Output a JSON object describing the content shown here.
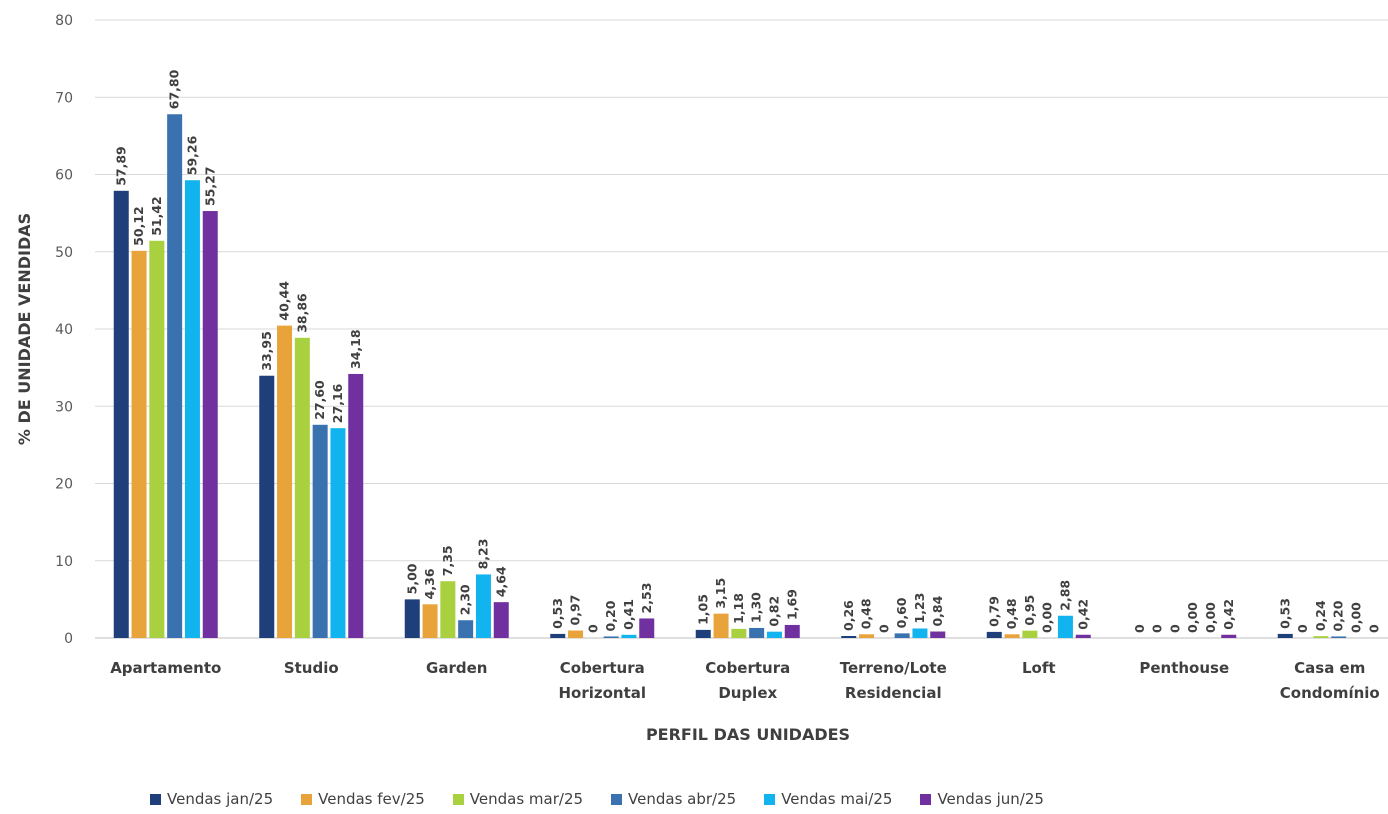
{
  "chart_data": {
    "type": "bar",
    "title": "",
    "xlabel": "PERFIL DAS UNIDADES",
    "ylabel": "% DE UNIDADE VENDIDAS",
    "ylim": [
      0,
      80
    ],
    "yticks": [
      0,
      10,
      20,
      30,
      40,
      50,
      60,
      70,
      80
    ],
    "grid": true,
    "legend_position": "bottom",
    "categories": [
      [
        "Apartamento"
      ],
      [
        "Studio"
      ],
      [
        "Garden"
      ],
      [
        "Cobertura",
        "Horizontal"
      ],
      [
        "Cobertura",
        "Duplex"
      ],
      [
        "Terreno/Lote",
        "Residencial"
      ],
      [
        "Loft"
      ],
      [
        "Penthouse"
      ],
      [
        "Casa em",
        "Condomínio"
      ]
    ],
    "series": [
      {
        "name": "Vendas jan/25",
        "color": "#1f3f7a",
        "values": [
          57.89,
          33.95,
          5.0,
          0.53,
          1.05,
          0.26,
          0.79,
          0,
          0.53
        ],
        "labels": [
          "57,89",
          "33,95",
          "5,00",
          "0,53",
          "1,05",
          "0,26",
          "0,79",
          "0",
          "0,53"
        ]
      },
      {
        "name": "Vendas fev/25",
        "color": "#e8a33b",
        "values": [
          50.12,
          40.44,
          4.36,
          0.97,
          3.15,
          0.48,
          0.48,
          0,
          0
        ],
        "labels": [
          "50,12",
          "40,44",
          "4,36",
          "0,97",
          "3,15",
          "0,48",
          "0,48",
          "0",
          "0"
        ]
      },
      {
        "name": "Vendas mar/25",
        "color": "#a9d13f",
        "values": [
          51.42,
          38.86,
          7.35,
          0,
          1.18,
          0,
          0.95,
          0,
          0.24
        ],
        "labels": [
          "51,42",
          "38,86",
          "7,35",
          "0",
          "1,18",
          "0",
          "0,95",
          "0",
          "0,24"
        ]
      },
      {
        "name": "Vendas abr/25",
        "color": "#3a72b0",
        "values": [
          67.8,
          27.6,
          2.3,
          0.2,
          1.3,
          0.6,
          0.0,
          0.0,
          0.2
        ],
        "labels": [
          "67,80",
          "27,60",
          "2,30",
          "0,20",
          "1,30",
          "0,60",
          "0,00",
          "0,00",
          "0,20"
        ]
      },
      {
        "name": "Vendas mai/25",
        "color": "#12b4f0",
        "values": [
          59.26,
          27.16,
          8.23,
          0.41,
          0.82,
          1.23,
          2.88,
          0.0,
          0.0
        ],
        "labels": [
          "59,26",
          "27,16",
          "8,23",
          "0,41",
          "0,82",
          "1,23",
          "2,88",
          "0,00",
          "0,00"
        ]
      },
      {
        "name": "Vendas jun/25",
        "color": "#7030a0",
        "values": [
          55.27,
          34.18,
          4.64,
          2.53,
          1.69,
          0.84,
          0.42,
          0.42,
          0
        ],
        "labels": [
          "55,27",
          "34,18",
          "4,64",
          "2,53",
          "1,69",
          "0,84",
          "0,42",
          "0,42",
          "0"
        ]
      }
    ]
  }
}
